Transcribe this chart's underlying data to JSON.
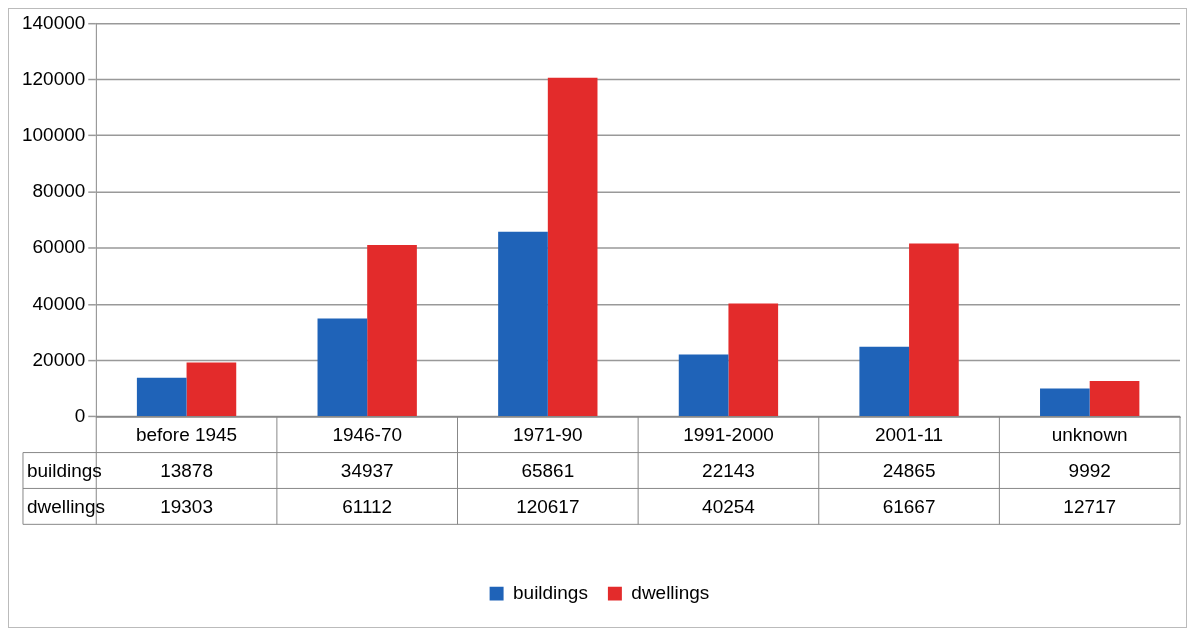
{
  "chart_data": {
    "type": "bar",
    "categories": [
      "before 1945",
      "1946-70",
      "1971-90",
      "1991-2000",
      "2001-11",
      "unknown"
    ],
    "series": [
      {
        "name": "buildings",
        "color": "#1f63b8",
        "values": [
          13878,
          34937,
          65861,
          22143,
          24865,
          9992
        ]
      },
      {
        "name": "dwellings",
        "color": "#e32b2b",
        "values": [
          19303,
          61112,
          120617,
          40254,
          61667,
          12717
        ]
      }
    ],
    "ylim": [
      0,
      140000
    ],
    "yticks": [
      0,
      20000,
      40000,
      60000,
      80000,
      100000,
      120000,
      140000
    ],
    "grid": "y",
    "legend": "bottom",
    "data_labels": true
  }
}
